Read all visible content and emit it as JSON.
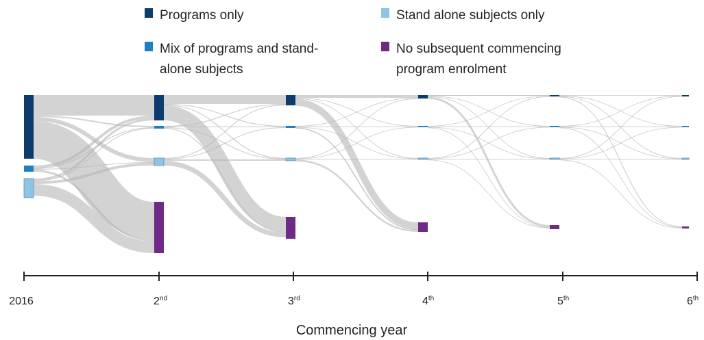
{
  "chart_data": {
    "type": "sankey",
    "xlabel": "Commencing year",
    "columns": [
      {
        "label": "2016",
        "sup": ""
      },
      {
        "label": "2",
        "sup": "nd"
      },
      {
        "label": "3",
        "sup": "rd"
      },
      {
        "label": "4",
        "sup": "th"
      },
      {
        "label": "5",
        "sup": "th"
      },
      {
        "label": "6",
        "sup": "th"
      }
    ],
    "categories": [
      {
        "key": "programs",
        "color": "#0d3b6e"
      },
      {
        "key": "mix",
        "color": "#1f7fc4"
      },
      {
        "key": "standalone",
        "color": "#8ec4e6"
      },
      {
        "key": "none",
        "color": "#6f2a87"
      }
    ],
    "legend": [
      {
        "key": "programs",
        "lines": [
          "Programs only"
        ]
      },
      {
        "key": "standalone",
        "lines": [
          "Stand alone subjects only"
        ]
      },
      {
        "key": "mix",
        "lines": [
          "Mix of programs and stand-",
          "alone subjects"
        ]
      },
      {
        "key": "none",
        "lines": [
          "No subsequent commencing",
          "program enrolment"
        ]
      }
    ],
    "node_sizes": [
      {
        "programs": 93,
        "mix": 9,
        "standalone": 28,
        "none": 0
      },
      {
        "programs": 37,
        "mix": 4,
        "standalone": 11,
        "none": 75
      },
      {
        "programs": 15,
        "mix": 3,
        "standalone": 4,
        "none": 32
      },
      {
        "programs": 5,
        "mix": 1,
        "standalone": 1,
        "none": 14
      },
      {
        "programs": 2,
        "mix": 1,
        "standalone": 1,
        "none": 6
      },
      {
        "programs": 1,
        "mix": 1,
        "standalone": 1,
        "none": 3
      }
    ],
    "flows": [
      {
        "from_col": 0,
        "from": "programs",
        "to": "programs",
        "value": 30
      },
      {
        "from_col": 0,
        "from": "programs",
        "to": "mix",
        "value": 2
      },
      {
        "from_col": 0,
        "from": "programs",
        "to": "standalone",
        "value": 6
      },
      {
        "from_col": 0,
        "from": "programs",
        "to": "none",
        "value": 55
      },
      {
        "from_col": 0,
        "from": "mix",
        "to": "programs",
        "value": 4
      },
      {
        "from_col": 0,
        "from": "mix",
        "to": "mix",
        "value": 1
      },
      {
        "from_col": 0,
        "from": "mix",
        "to": "standalone",
        "value": 1
      },
      {
        "from_col": 0,
        "from": "mix",
        "to": "none",
        "value": 3
      },
      {
        "from_col": 0,
        "from": "standalone",
        "to": "programs",
        "value": 3
      },
      {
        "from_col": 0,
        "from": "standalone",
        "to": "mix",
        "value": 1
      },
      {
        "from_col": 0,
        "from": "standalone",
        "to": "standalone",
        "value": 4
      },
      {
        "from_col": 0,
        "from": "standalone",
        "to": "none",
        "value": 17
      },
      {
        "from_col": 1,
        "from": "programs",
        "to": "programs",
        "value": 13
      },
      {
        "from_col": 1,
        "from": "programs",
        "to": "mix",
        "value": 1
      },
      {
        "from_col": 1,
        "from": "programs",
        "to": "standalone",
        "value": 1
      },
      {
        "from_col": 1,
        "from": "programs",
        "to": "none",
        "value": 22
      },
      {
        "from_col": 1,
        "from": "mix",
        "to": "programs",
        "value": 1
      },
      {
        "from_col": 1,
        "from": "mix",
        "to": "mix",
        "value": 1
      },
      {
        "from_col": 1,
        "from": "mix",
        "to": "standalone",
        "value": 1
      },
      {
        "from_col": 1,
        "from": "mix",
        "to": "none",
        "value": 1
      },
      {
        "from_col": 1,
        "from": "standalone",
        "to": "programs",
        "value": 1
      },
      {
        "from_col": 1,
        "from": "standalone",
        "to": "mix",
        "value": 1
      },
      {
        "from_col": 1,
        "from": "standalone",
        "to": "standalone",
        "value": 2
      },
      {
        "from_col": 1,
        "from": "standalone",
        "to": "none",
        "value": 7
      },
      {
        "from_col": 2,
        "from": "programs",
        "to": "programs",
        "value": 4
      },
      {
        "from_col": 2,
        "from": "programs",
        "to": "mix",
        "value": 0.5
      },
      {
        "from_col": 2,
        "from": "programs",
        "to": "standalone",
        "value": 0.5
      },
      {
        "from_col": 2,
        "from": "programs",
        "to": "none",
        "value": 10
      },
      {
        "from_col": 2,
        "from": "mix",
        "to": "programs",
        "value": 0.5
      },
      {
        "from_col": 2,
        "from": "mix",
        "to": "mix",
        "value": 0.3
      },
      {
        "from_col": 2,
        "from": "mix",
        "to": "standalone",
        "value": 0.3
      },
      {
        "from_col": 2,
        "from": "mix",
        "to": "none",
        "value": 1.5
      },
      {
        "from_col": 2,
        "from": "standalone",
        "to": "programs",
        "value": 0.4
      },
      {
        "from_col": 2,
        "from": "standalone",
        "to": "mix",
        "value": 0.3
      },
      {
        "from_col": 2,
        "from": "standalone",
        "to": "standalone",
        "value": 0.3
      },
      {
        "from_col": 2,
        "from": "standalone",
        "to": "none",
        "value": 2.5
      },
      {
        "from_col": 3,
        "from": "programs",
        "to": "programs",
        "value": 1
      },
      {
        "from_col": 3,
        "from": "programs",
        "to": "mix",
        "value": 0.3
      },
      {
        "from_col": 3,
        "from": "programs",
        "to": "standalone",
        "value": 0.3
      },
      {
        "from_col": 3,
        "from": "programs",
        "to": "none",
        "value": 3
      },
      {
        "from_col": 3,
        "from": "mix",
        "to": "programs",
        "value": 0.3
      },
      {
        "from_col": 3,
        "from": "mix",
        "to": "mix",
        "value": 0.3
      },
      {
        "from_col": 3,
        "from": "mix",
        "to": "standalone",
        "value": 0.3
      },
      {
        "from_col": 3,
        "from": "mix",
        "to": "none",
        "value": 0.5
      },
      {
        "from_col": 3,
        "from": "standalone",
        "to": "programs",
        "value": 0.3
      },
      {
        "from_col": 3,
        "from": "standalone",
        "to": "mix",
        "value": 0.3
      },
      {
        "from_col": 3,
        "from": "standalone",
        "to": "standalone",
        "value": 0.3
      },
      {
        "from_col": 3,
        "from": "standalone",
        "to": "none",
        "value": 0.5
      },
      {
        "from_col": 4,
        "from": "programs",
        "to": "programs",
        "value": 0.5
      },
      {
        "from_col": 4,
        "from": "programs",
        "to": "mix",
        "value": 0.3
      },
      {
        "from_col": 4,
        "from": "programs",
        "to": "standalone",
        "value": 0.3
      },
      {
        "from_col": 4,
        "from": "programs",
        "to": "none",
        "value": 1
      },
      {
        "from_col": 4,
        "from": "mix",
        "to": "programs",
        "value": 0.3
      },
      {
        "from_col": 4,
        "from": "mix",
        "to": "mix",
        "value": 0.3
      },
      {
        "from_col": 4,
        "from": "mix",
        "to": "standalone",
        "value": 0.3
      },
      {
        "from_col": 4,
        "from": "mix",
        "to": "none",
        "value": 0.4
      },
      {
        "from_col": 4,
        "from": "standalone",
        "to": "programs",
        "value": 0.3
      },
      {
        "from_col": 4,
        "from": "standalone",
        "to": "mix",
        "value": 0.3
      },
      {
        "from_col": 4,
        "from": "standalone",
        "to": "standalone",
        "value": 0.3
      },
      {
        "from_col": 4,
        "from": "standalone",
        "to": "none",
        "value": 0.4
      }
    ]
  }
}
